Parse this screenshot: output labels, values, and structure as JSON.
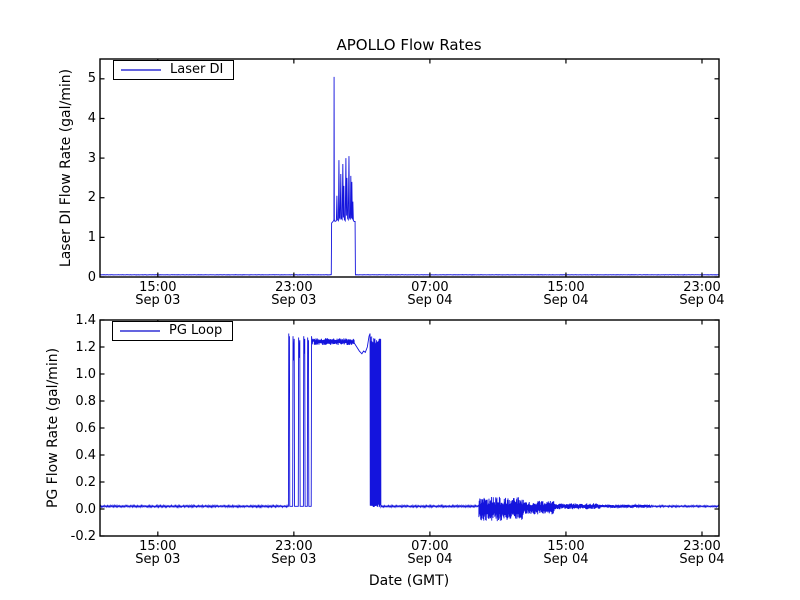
{
  "chart_data": {
    "type": "line",
    "title": "APOLLO Flow Rates",
    "xlabel": "Date (GMT)",
    "x_unit": "hours_since_Sep_03_00:00_GMT",
    "x_domain": [
      11.6,
      48.0
    ],
    "x_ticks": [
      {
        "t": 15,
        "time": "15:00",
        "date": "Sep 03"
      },
      {
        "t": 23,
        "time": "23:00",
        "date": "Sep 03"
      },
      {
        "t": 31,
        "time": "07:00",
        "date": "Sep 04"
      },
      {
        "t": 39,
        "time": "15:00",
        "date": "Sep 04"
      },
      {
        "t": 47,
        "time": "23:00",
        "date": "Sep 04"
      }
    ],
    "grid": false,
    "legend_position": "upper-left",
    "line_color": "#1414dd",
    "frame_color": "#000000",
    "background": "#ffffff",
    "subplots": [
      {
        "id": "laser_di",
        "legend": "Laser DI",
        "ylabel": "Laser DI Flow Rate (gal/min)",
        "ylim": [
          0,
          5.5
        ],
        "yticks": [
          {
            "v": 0,
            "label": "0"
          },
          {
            "v": 1,
            "label": "1"
          },
          {
            "v": 2,
            "label": "2"
          },
          {
            "v": 3,
            "label": "3"
          },
          {
            "v": 4,
            "label": "4"
          },
          {
            "v": 5,
            "label": "5"
          }
        ],
        "segments": [
          {
            "kind": "flat",
            "t0": 11.6,
            "t1": 25.18,
            "v": 0.055,
            "noise": 0.006
          },
          {
            "kind": "points",
            "pts": [
              [
                25.2,
                0.06
              ],
              [
                25.22,
                1.36
              ],
              [
                25.3,
                1.4
              ],
              [
                25.34,
                1.42
              ],
              [
                25.355,
                1.45
              ],
              [
                25.365,
                5.05
              ],
              [
                25.38,
                1.45
              ],
              [
                25.42,
                1.4
              ],
              [
                25.5,
                1.42
              ],
              [
                25.53,
                2.05
              ],
              [
                25.56,
                1.45
              ],
              [
                25.62,
                1.42
              ],
              [
                25.65,
                2.95
              ],
              [
                25.68,
                1.5
              ],
              [
                25.72,
                1.45
              ],
              [
                25.76,
                2.6
              ],
              [
                25.79,
                1.48
              ],
              [
                25.84,
                1.45
              ],
              [
                25.88,
                2.85
              ],
              [
                25.91,
                1.5
              ],
              [
                25.94,
                2.3
              ],
              [
                25.97,
                1.45
              ],
              [
                26.02,
                1.42
              ],
              [
                26.06,
                3.0
              ],
              [
                26.09,
                1.55
              ],
              [
                26.12,
                2.5
              ],
              [
                26.16,
                1.48
              ],
              [
                26.2,
                1.45
              ],
              [
                26.24,
                3.05
              ],
              [
                26.27,
                1.5
              ],
              [
                26.32,
                1.45
              ],
              [
                26.35,
                2.55
              ],
              [
                26.38,
                1.48
              ],
              [
                26.41,
                2.4
              ],
              [
                26.44,
                1.45
              ],
              [
                26.47,
                1.9
              ],
              [
                26.5,
                1.42
              ],
              [
                26.56,
                1.4
              ],
              [
                26.6,
                1.4
              ],
              [
                26.62,
                0.06
              ]
            ]
          },
          {
            "kind": "flat",
            "t0": 26.64,
            "t1": 48.0,
            "v": 0.055,
            "noise": 0.006
          }
        ]
      },
      {
        "id": "pg_loop",
        "legend": "PG Loop",
        "ylabel": "PG Flow Rate (gal/min)",
        "ylim": [
          -0.2,
          1.4
        ],
        "yticks": [
          {
            "v": -0.2,
            "label": "-0.2"
          },
          {
            "v": 0.0,
            "label": "0.0"
          },
          {
            "v": 0.2,
            "label": "0.2"
          },
          {
            "v": 0.4,
            "label": "0.4"
          },
          {
            "v": 0.6,
            "label": "0.6"
          },
          {
            "v": 0.8,
            "label": "0.8"
          },
          {
            "v": 1.0,
            "label": "1.0"
          },
          {
            "v": 1.2,
            "label": "1.2"
          },
          {
            "v": 1.4,
            "label": "1.4"
          }
        ],
        "segments": [
          {
            "kind": "flat",
            "t0": 11.6,
            "t1": 22.66,
            "v": 0.02,
            "noise": 0.008
          },
          {
            "kind": "points",
            "pts": [
              [
                22.68,
                0.02
              ],
              [
                22.7,
                1.3
              ],
              [
                22.72,
                1.05
              ],
              [
                22.74,
                1.28
              ],
              [
                22.76,
                0.02
              ],
              [
                22.93,
                0.02
              ],
              [
                22.95,
                1.28
              ],
              [
                22.99,
                1.1
              ],
              [
                23.02,
                1.26
              ],
              [
                23.04,
                0.02
              ],
              [
                23.26,
                0.02
              ],
              [
                23.28,
                1.27
              ],
              [
                23.32,
                1.12
              ],
              [
                23.35,
                1.25
              ],
              [
                23.37,
                0.02
              ],
              [
                23.56,
                0.02
              ],
              [
                23.58,
                1.28
              ],
              [
                23.62,
                1.15
              ],
              [
                23.64,
                1.26
              ],
              [
                23.66,
                0.02
              ],
              [
                23.79,
                0.02
              ],
              [
                23.81,
                1.27
              ],
              [
                23.84,
                1.2
              ],
              [
                23.86,
                1.25
              ],
              [
                23.88,
                0.02
              ],
              [
                24.02,
                0.02
              ],
              [
                24.04,
                1.28
              ],
              [
                24.08,
                1.22
              ],
              [
                24.12,
                1.26
              ],
              [
                24.16,
                1.24
              ],
              [
                24.2,
                1.26
              ]
            ]
          },
          {
            "kind": "noise",
            "t0": 24.2,
            "t1": 26.55,
            "mean": 1.24,
            "amp": 0.025,
            "step": 0.02
          },
          {
            "kind": "points",
            "pts": [
              [
                26.55,
                1.23
              ],
              [
                26.7,
                1.2
              ],
              [
                26.85,
                1.17
              ],
              [
                27.0,
                1.15
              ],
              [
                27.1,
                1.17
              ],
              [
                27.2,
                1.16
              ],
              [
                27.32,
                1.2
              ],
              [
                27.42,
                1.28
              ],
              [
                27.48,
                1.3
              ]
            ]
          },
          {
            "kind": "burst",
            "t0": 27.48,
            "t1": 28.12,
            "lo": 0.01,
            "hi": 1.28,
            "step": 0.012
          },
          {
            "kind": "flat",
            "t0": 28.12,
            "t1": 33.88,
            "v": 0.02,
            "noise": 0.008
          },
          {
            "kind": "noise",
            "t0": 33.88,
            "t1": 36.5,
            "mean": 0.0,
            "amp": 0.09,
            "step": 0.018
          },
          {
            "kind": "noise",
            "t0": 36.5,
            "t1": 38.3,
            "mean": 0.01,
            "amp": 0.05,
            "step": 0.02
          },
          {
            "kind": "noise",
            "t0": 38.3,
            "t1": 41.0,
            "mean": 0.02,
            "amp": 0.022,
            "step": 0.025
          },
          {
            "kind": "noise",
            "t0": 41.0,
            "t1": 44.0,
            "mean": 0.02,
            "amp": 0.012,
            "step": 0.03
          },
          {
            "kind": "flat",
            "t0": 44.0,
            "t1": 48.0,
            "v": 0.02,
            "noise": 0.007
          }
        ]
      }
    ]
  }
}
